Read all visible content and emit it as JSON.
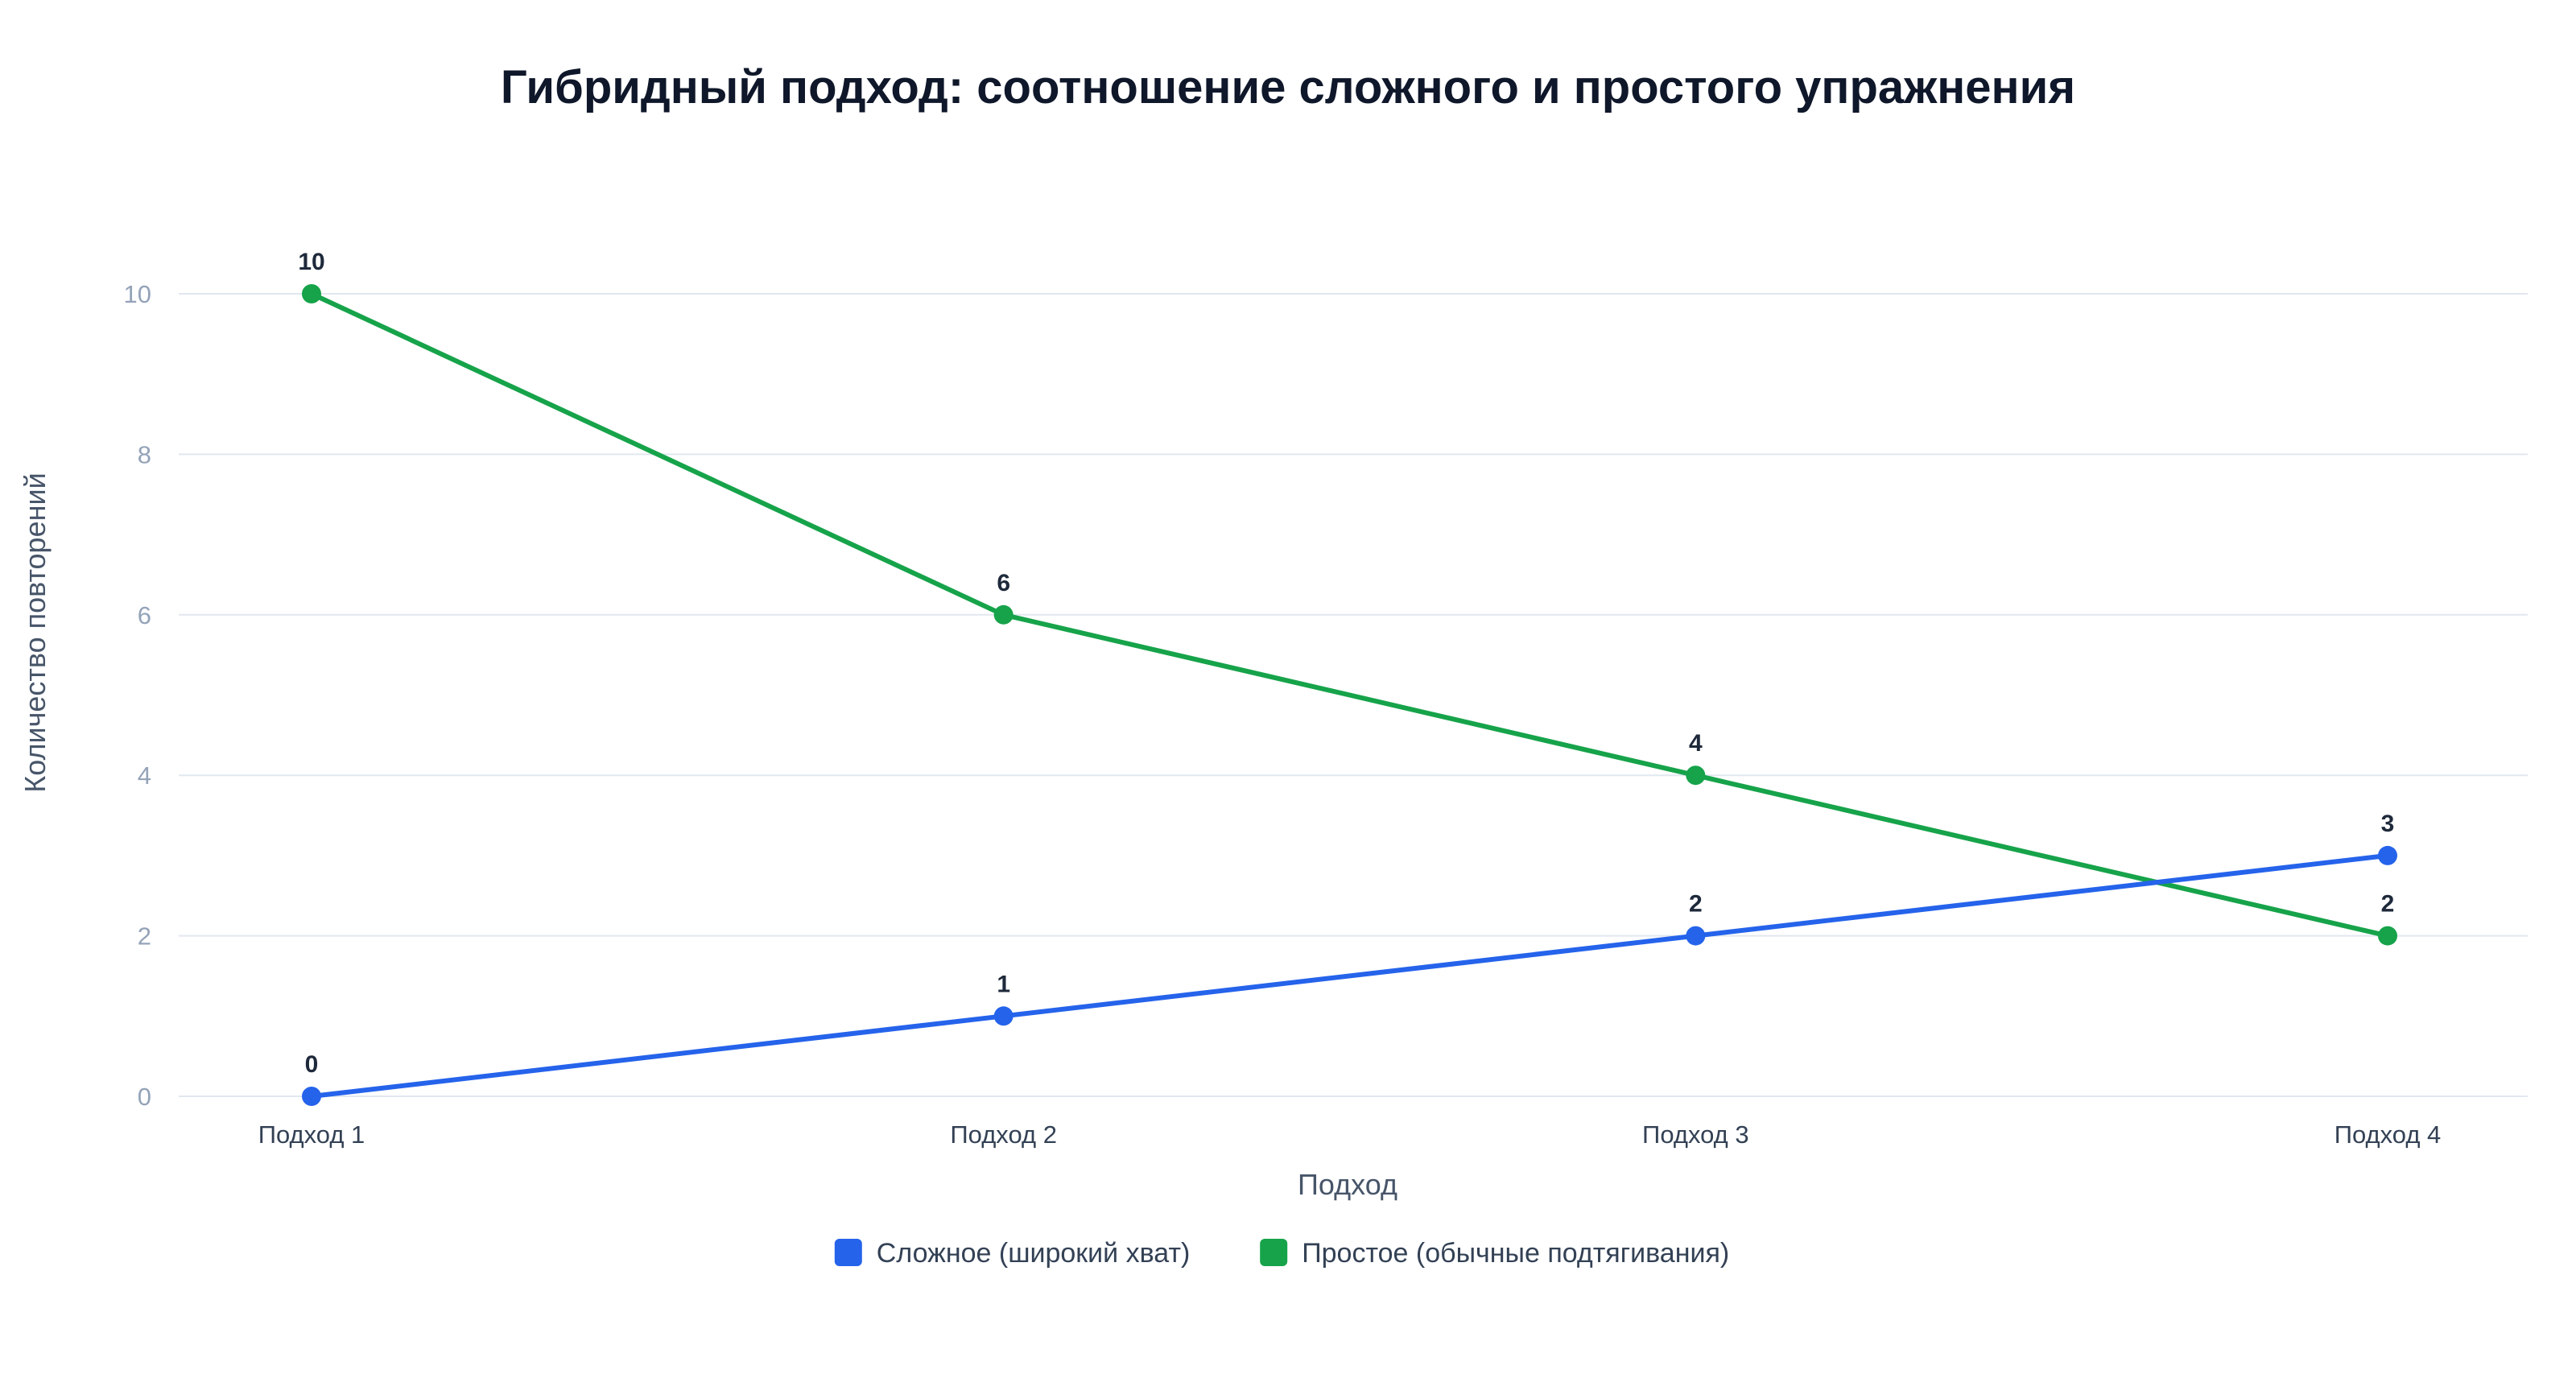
{
  "chart_data": {
    "type": "line",
    "title": "Гибридный подход: соотношение сложного и простого упражнения",
    "xlabel": "Подход",
    "ylabel": "Количество повторений",
    "categories": [
      "Подход 1",
      "Подход 2",
      "Подход 3",
      "Подход 4"
    ],
    "ylim": [
      0,
      10
    ],
    "yticks": [
      0,
      2,
      4,
      6,
      8,
      10
    ],
    "grid": true,
    "legend_position": "bottom",
    "data_labels": true,
    "series": [
      {
        "name": "Сложное (широкий хват)",
        "color": "#2563eb",
        "values": [
          0,
          1,
          2,
          3
        ]
      },
      {
        "name": "Простое (обычные подтягивания)",
        "color": "#16a34a",
        "values": [
          10,
          6,
          4,
          2
        ]
      }
    ]
  }
}
